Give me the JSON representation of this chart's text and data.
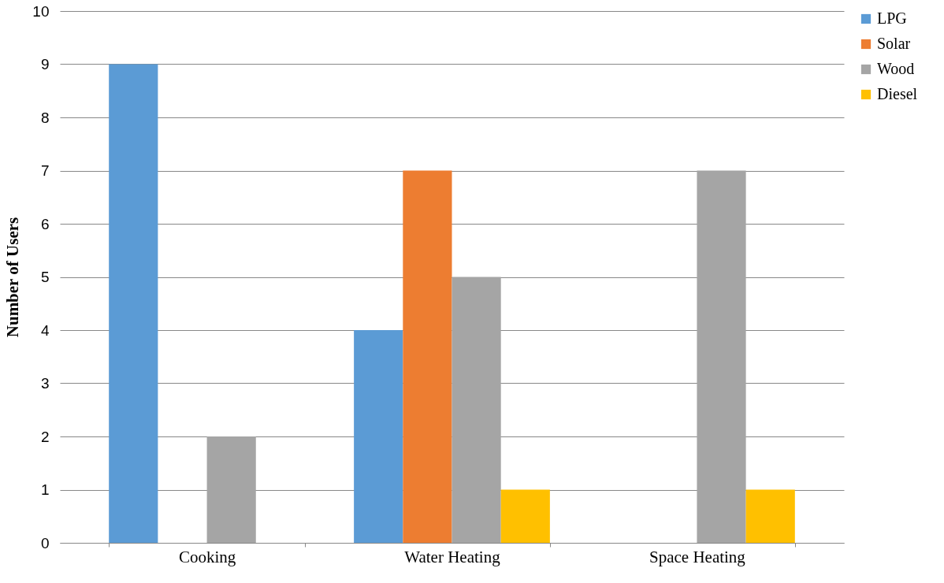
{
  "chart_data": {
    "type": "bar",
    "ylabel": "Number of Users",
    "categories": [
      "Cooking",
      "Water Heating",
      "Space Heating"
    ],
    "series": [
      {
        "name": "LPG",
        "color": "#5b9bd5",
        "values": [
          9,
          4,
          0
        ]
      },
      {
        "name": "Solar",
        "color": "#ed7d31",
        "values": [
          0,
          7,
          0
        ]
      },
      {
        "name": "Wood",
        "color": "#a5a5a5",
        "values": [
          2,
          5,
          7
        ]
      },
      {
        "name": "Diesel",
        "color": "#ffc000",
        "values": [
          0,
          1,
          1
        ]
      }
    ],
    "ylim": [
      0,
      10
    ],
    "yticks": [
      0,
      1,
      2,
      3,
      4,
      5,
      6,
      7,
      8,
      9,
      10
    ],
    "grid": "y",
    "legend": "right"
  }
}
